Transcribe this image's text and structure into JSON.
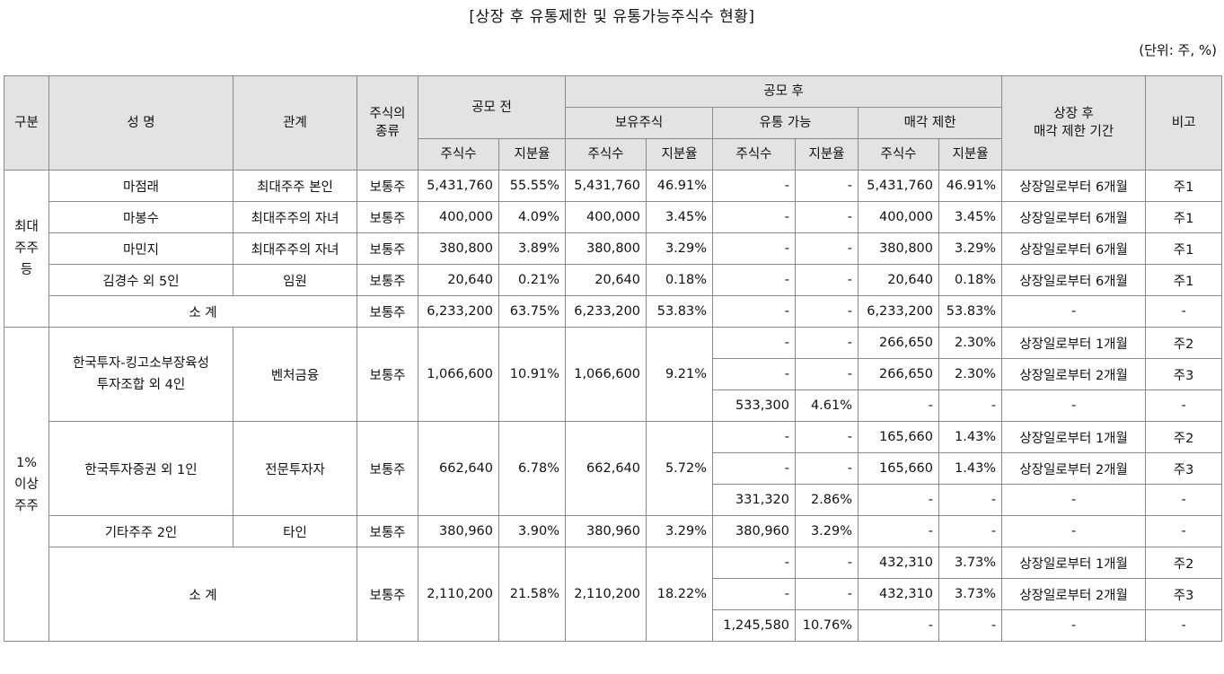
{
  "title": "[상장 후 유통제한 및 유통가능주식수 현황]",
  "unit": "(단위: 주, %)",
  "headers": {
    "category": "구분",
    "name": "성 명",
    "relation": "관계",
    "stock_type": "주식의\n종류",
    "pre_ipo": "공모 전",
    "post_ipo": "공모 후",
    "holding": "보유주식",
    "tradable": "유통 가능",
    "restricted": "매각 제한",
    "restriction_period": "상장 후\n매각 제한 기간",
    "note": "비고",
    "shares": "주식수",
    "ratio": "지분율"
  },
  "groups": {
    "major": "최대\n주주\n등",
    "over1": "1%\n이상\n주주"
  },
  "rows": {
    "r1": {
      "name": "마점래",
      "rel": "최대주주 본인",
      "type": "보통주",
      "pre_shares": "5,431,760",
      "pre_ratio": "55.55%",
      "hold_shares": "5,431,760",
      "hold_ratio": "46.91%",
      "trad_shares": "-",
      "trad_ratio": "-",
      "res_shares": "5,431,760",
      "res_ratio": "46.91%",
      "period": "상장일로부터 6개월",
      "note": "주1"
    },
    "r2": {
      "name": "마봉수",
      "rel": "최대주주의 자녀",
      "type": "보통주",
      "pre_shares": "400,000",
      "pre_ratio": "4.09%",
      "hold_shares": "400,000",
      "hold_ratio": "3.45%",
      "trad_shares": "-",
      "trad_ratio": "-",
      "res_shares": "400,000",
      "res_ratio": "3.45%",
      "period": "상장일로부터 6개월",
      "note": "주1"
    },
    "r3": {
      "name": "마민지",
      "rel": "최대주주의 자녀",
      "type": "보통주",
      "pre_shares": "380,800",
      "pre_ratio": "3.89%",
      "hold_shares": "380,800",
      "hold_ratio": "3.29%",
      "trad_shares": "-",
      "trad_ratio": "-",
      "res_shares": "380,800",
      "res_ratio": "3.29%",
      "period": "상장일로부터 6개월",
      "note": "주1"
    },
    "r4": {
      "name": "김경수 외 5인",
      "rel": "임원",
      "type": "보통주",
      "pre_shares": "20,640",
      "pre_ratio": "0.21%",
      "hold_shares": "20,640",
      "hold_ratio": "0.18%",
      "trad_shares": "-",
      "trad_ratio": "-",
      "res_shares": "20,640",
      "res_ratio": "0.18%",
      "period": "상장일로부터 6개월",
      "note": "주1"
    },
    "r5": {
      "name": "소 계",
      "type": "보통주",
      "pre_shares": "6,233,200",
      "pre_ratio": "63.75%",
      "hold_shares": "6,233,200",
      "hold_ratio": "53.83%",
      "trad_shares": "-",
      "trad_ratio": "-",
      "res_shares": "6,233,200",
      "res_ratio": "53.83%",
      "period": "-",
      "note": "-"
    },
    "b1": {
      "name": "한국투자-킹고소부장육성\n투자조합 외 4인",
      "rel": "벤처금융",
      "type": "보통주",
      "pre_shares": "1,066,600",
      "pre_ratio": "10.91%",
      "hold_shares": "1,066,600",
      "hold_ratio": "9.21%",
      "subs": [
        {
          "trad_shares": "-",
          "trad_ratio": "-",
          "res_shares": "266,650",
          "res_ratio": "2.30%",
          "period": "상장일로부터 1개월",
          "note": "주2"
        },
        {
          "trad_shares": "-",
          "trad_ratio": "-",
          "res_shares": "266,650",
          "res_ratio": "2.30%",
          "period": "상장일로부터 2개월",
          "note": "주3"
        },
        {
          "trad_shares": "533,300",
          "trad_ratio": "4.61%",
          "res_shares": "-",
          "res_ratio": "-",
          "period": "-",
          "note": "-"
        }
      ]
    },
    "b2": {
      "name": "한국투자증권 외 1인",
      "rel": "전문투자자",
      "type": "보통주",
      "pre_shares": "662,640",
      "pre_ratio": "6.78%",
      "hold_shares": "662,640",
      "hold_ratio": "5.72%",
      "subs": [
        {
          "trad_shares": "-",
          "trad_ratio": "-",
          "res_shares": "165,660",
          "res_ratio": "1.43%",
          "period": "상장일로부터 1개월",
          "note": "주2"
        },
        {
          "trad_shares": "-",
          "trad_ratio": "-",
          "res_shares": "165,660",
          "res_ratio": "1.43%",
          "period": "상장일로부터 2개월",
          "note": "주3"
        },
        {
          "trad_shares": "331,320",
          "trad_ratio": "2.86%",
          "res_shares": "-",
          "res_ratio": "-",
          "period": "-",
          "note": "-"
        }
      ]
    },
    "b3": {
      "name": "기타주주 2인",
      "rel": "타인",
      "type": "보통주",
      "pre_shares": "380,960",
      "pre_ratio": "3.90%",
      "hold_shares": "380,960",
      "hold_ratio": "3.29%",
      "trad_shares": "380,960",
      "trad_ratio": "3.29%",
      "res_shares": "-",
      "res_ratio": "-",
      "period": "-",
      "note": "-"
    },
    "b4": {
      "name": "소 계",
      "type": "보통주",
      "pre_shares": "2,110,200",
      "pre_ratio": "21.58%",
      "hold_shares": "2,110,200",
      "hold_ratio": "18.22%",
      "subs": [
        {
          "trad_shares": "-",
          "trad_ratio": "-",
          "res_shares": "432,310",
          "res_ratio": "3.73%",
          "period": "상장일로부터 1개월",
          "note": "주2"
        },
        {
          "trad_shares": "-",
          "trad_ratio": "-",
          "res_shares": "432,310",
          "res_ratio": "3.73%",
          "period": "상장일로부터 2개월",
          "note": "주3"
        },
        {
          "trad_shares": "1,245,580",
          "trad_ratio": "10.76%",
          "res_shares": "-",
          "res_ratio": "-",
          "period": "-",
          "note": "-"
        }
      ]
    }
  }
}
